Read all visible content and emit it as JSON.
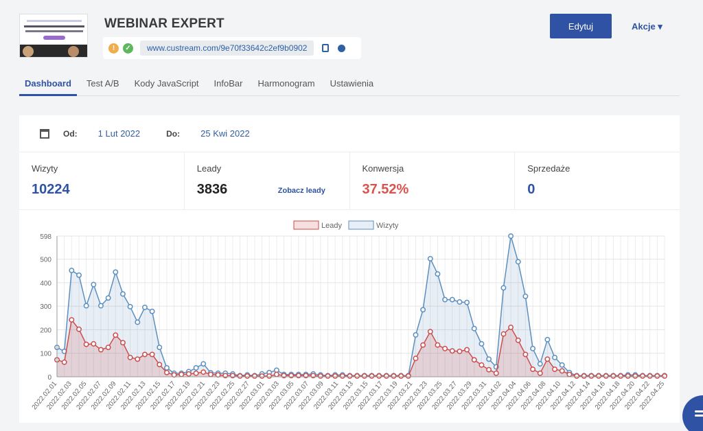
{
  "header": {
    "title": "WEBINAR EXPERT",
    "url": "www.custream.com/9e70f33642c2ef9b0902",
    "edit_label": "Edytuj",
    "actions_label": "Akcje ▾"
  },
  "tabs": [
    "Dashboard",
    "Test A/B",
    "Kody JavaScript",
    "InfoBar",
    "Harmonogram",
    "Ustawienia"
  ],
  "dates": {
    "from_label": "Od:",
    "from_value": "1 Lut 2022",
    "to_label": "Do:",
    "to_value": "25 Kwi 2022"
  },
  "stats": {
    "visits_label": "Wizyty",
    "visits_value": "10224",
    "leads_label": "Leady",
    "leads_value": "3836",
    "see_leads": "Zobacz leady",
    "conv_label": "Konwersja",
    "conv_value": "37.52%",
    "sales_label": "Sprzedaże",
    "sales_value": "0"
  },
  "colors": {
    "accent": "#2f52a4",
    "visits": "#5b8fbf",
    "leads": "#cc4d4d",
    "conversion": "#d9534f"
  },
  "chart_data": {
    "type": "line",
    "legend": [
      "Leady",
      "Wizyty"
    ],
    "legend_position": "top",
    "ylim": [
      0,
      598
    ],
    "yticks": [
      0,
      100,
      200,
      300,
      400,
      500,
      598
    ],
    "xlabels": [
      "2022.02.01",
      "2022.02.03",
      "2022.02.05",
      "2022.02.07",
      "2022.02.09",
      "2022.02.11",
      "2022.02.13",
      "2022.02.15",
      "2022.02.17",
      "2022.02.19",
      "2022.02.21",
      "2022.02.23",
      "2022.02.25",
      "2022.02.27",
      "2022.03.01",
      "2022.03.03",
      "2022.03.05",
      "2022.03.07",
      "2022.03.09",
      "2022.03.11",
      "2022.03.13",
      "2022.03.15",
      "2022.03.17",
      "2022.03.19",
      "2022.03.21",
      "2022.03.23",
      "2022.03.25",
      "2022.03.27",
      "2022.03.29",
      "2022.03.31",
      "2022.04.02",
      "2022.04.04",
      "2022.04.06",
      "2022.04.08",
      "2022.04.10",
      "2022.04.12",
      "2022.04.14",
      "2022.04.16",
      "2022.04.18",
      "2022.04.20",
      "2022.04.22",
      "2022.04.25"
    ],
    "series": [
      {
        "name": "Wizyty",
        "values": [
          125,
          108,
          452,
          432,
          302,
          392,
          302,
          335,
          445,
          352,
          298,
          232,
          295,
          278,
          125,
          38,
          15,
          15,
          22,
          38,
          55,
          17,
          15,
          15,
          12,
          5,
          8,
          5,
          12,
          18,
          28,
          10,
          10,
          10,
          10,
          12,
          8,
          5,
          8,
          8,
          5,
          5,
          5,
          5,
          5,
          5,
          5,
          5,
          5,
          178,
          285,
          502,
          437,
          328,
          328,
          318,
          316,
          205,
          140,
          75,
          42,
          378,
          598,
          489,
          342,
          120,
          55,
          158,
          82,
          50,
          18,
          5,
          5,
          5,
          5,
          5,
          5,
          5,
          8,
          8,
          5,
          5,
          5,
          5
        ]
      },
      {
        "name": "Leady",
        "values": [
          72,
          62,
          242,
          202,
          138,
          140,
          115,
          125,
          177,
          145,
          82,
          75,
          95,
          95,
          52,
          18,
          8,
          10,
          12,
          15,
          20,
          10,
          8,
          5,
          5,
          3,
          3,
          3,
          3,
          3,
          10,
          5,
          5,
          5,
          5,
          5,
          3,
          3,
          3,
          3,
          3,
          3,
          3,
          3,
          3,
          3,
          3,
          3,
          3,
          78,
          135,
          192,
          135,
          120,
          110,
          108,
          115,
          72,
          50,
          30,
          15,
          182,
          210,
          155,
          95,
          32,
          15,
          75,
          32,
          25,
          10,
          3,
          3,
          3,
          3,
          3,
          3,
          3,
          3,
          3,
          3,
          3,
          3,
          3
        ]
      }
    ]
  }
}
